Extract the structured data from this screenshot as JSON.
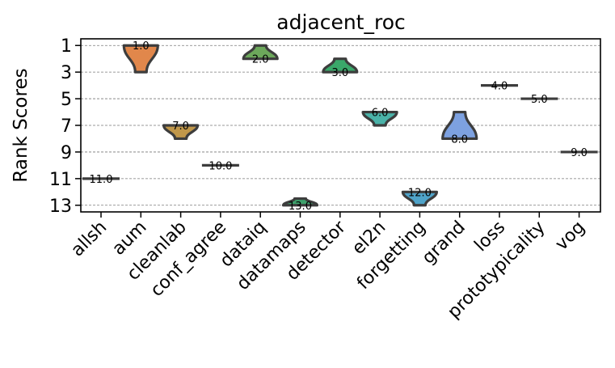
{
  "chart_data": {
    "type": "violin",
    "title": "adjacent_roc",
    "xlabel": "",
    "ylabel": "Rank Scores",
    "y_inverted": true,
    "ylim": [
      13.5,
      0.5
    ],
    "yticks": [
      1,
      3,
      5,
      7,
      9,
      11,
      13
    ],
    "ytick_labels": [
      "1",
      "3",
      "5",
      "7",
      "9",
      "11",
      "13"
    ],
    "grid": "horizontal dashed",
    "categories": [
      "allsh",
      "aum",
      "cleanlab",
      "conf_agree",
      "dataiq",
      "datamaps",
      "detector",
      "el2n",
      "forgetting",
      "grand",
      "loss",
      "prototypicality",
      "vog"
    ],
    "medians": [
      11.0,
      1.0,
      7.0,
      10.0,
      2.0,
      13.0,
      3.0,
      6.0,
      12.0,
      8.0,
      4.0,
      5.0,
      9.0
    ],
    "median_labels": [
      "11.0",
      "1.0",
      "7.0",
      "10.0",
      "2.0",
      "13.0",
      "3.0",
      "6.0",
      "12.0",
      "8.0",
      "4.0",
      "5.0",
      "9.0"
    ],
    "ranges": [
      [
        11,
        11
      ],
      [
        1,
        3
      ],
      [
        7,
        8
      ],
      [
        10,
        10
      ],
      [
        1,
        2
      ],
      [
        12.5,
        13
      ],
      [
        2,
        3
      ],
      [
        6,
        7
      ],
      [
        12,
        13
      ],
      [
        6,
        8
      ],
      [
        4,
        4
      ],
      [
        5,
        5
      ],
      [
        9,
        9
      ]
    ],
    "colors": [
      "#3b75af",
      "#e1874b",
      "#c0974a",
      "#8c8c8c",
      "#6ca85b",
      "#3da16b",
      "#3aa86a",
      "#4ab2a8",
      "#4fa3c9",
      "#7da1e0",
      "#6b6b6b",
      "#6b6b6b",
      "#6b6b6b"
    ]
  }
}
